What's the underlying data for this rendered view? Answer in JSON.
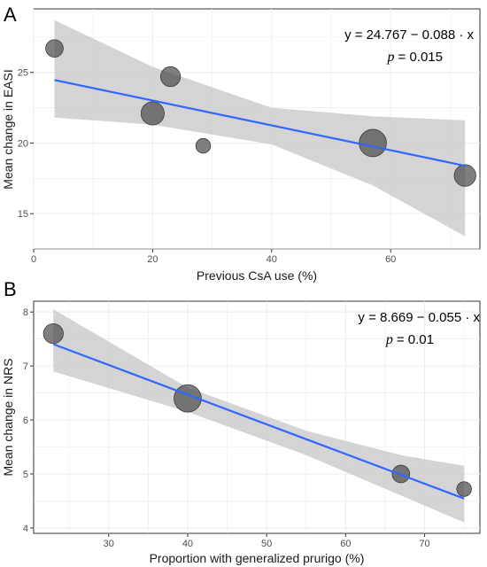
{
  "chart_data": [
    {
      "type": "scatter",
      "panel_label": "A",
      "title": "",
      "xlabel": "Previous CsA use (%)",
      "ylabel": "Mean change in EASI",
      "xlim": [
        0,
        75
      ],
      "ylim": [
        12.5,
        29.5
      ],
      "xticks": [
        0,
        20,
        40,
        60
      ],
      "yticks": [
        15,
        20,
        25
      ],
      "grid": true,
      "legend": "none",
      "annotation": {
        "equation": "y = 24.767 − 0.088 · x",
        "p_symbol": "p",
        "p_value": "= 0.015"
      },
      "points": [
        {
          "x": 3.5,
          "y": 26.7,
          "weight": 2
        },
        {
          "x": 20,
          "y": 22.1,
          "weight": 5
        },
        {
          "x": 23,
          "y": 24.7,
          "weight": 3
        },
        {
          "x": 28.5,
          "y": 19.8,
          "weight": 1
        },
        {
          "x": 57,
          "y": 20.0,
          "weight": 8
        },
        {
          "x": 72.5,
          "y": 17.7,
          "weight": 4
        }
      ],
      "fit": {
        "intercept": 24.767,
        "slope": -0.088,
        "x_range": [
          3.5,
          72.5
        ]
      },
      "ci_band": {
        "x": [
          3.5,
          20,
          40,
          57,
          72.5
        ],
        "lower": [
          21.8,
          21.3,
          19.9,
          17.0,
          13.4
        ],
        "upper": [
          28.7,
          25.4,
          22.5,
          21.9,
          21.6
        ]
      },
      "colors": {
        "fit_line": "#3366ff",
        "ci_band": "#cccccc",
        "points": "#4d4d4d"
      }
    },
    {
      "type": "scatter",
      "panel_label": "B",
      "title": "",
      "xlabel": "Proportion with generalized prurigo (%)",
      "ylabel": "Mean change in NRS",
      "xlim": [
        20.5,
        77
      ],
      "ylim": [
        3.9,
        8.2
      ],
      "xticks": [
        30,
        40,
        50,
        60,
        70
      ],
      "yticks": [
        4,
        5,
        6,
        7,
        8
      ],
      "grid": true,
      "legend": "none",
      "annotation": {
        "equation": "y = 8.669 − 0.055 · x",
        "p_symbol": "p",
        "p_value": "= 0.01"
      },
      "points": [
        {
          "x": 23,
          "y": 7.6,
          "weight": 3
        },
        {
          "x": 40,
          "y": 6.4,
          "weight": 8
        },
        {
          "x": 67,
          "y": 5.0,
          "weight": 2
        },
        {
          "x": 75,
          "y": 4.72,
          "weight": 1
        }
      ],
      "fit": {
        "intercept": 8.669,
        "slope": -0.055,
        "x_range": [
          23,
          75
        ]
      },
      "ci_band": {
        "x": [
          23,
          40,
          55,
          67,
          75
        ],
        "lower": [
          6.9,
          6.15,
          5.35,
          4.6,
          4.1
        ],
        "upper": [
          8.05,
          6.6,
          5.8,
          5.35,
          5.15
        ]
      },
      "colors": {
        "fit_line": "#3366ff",
        "ci_band": "#cccccc",
        "points": "#4d4d4d"
      }
    }
  ]
}
